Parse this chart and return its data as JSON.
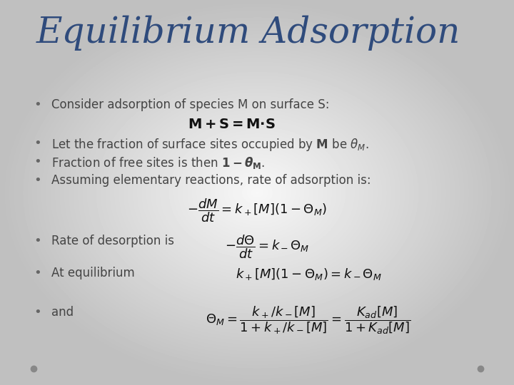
{
  "title": "Equilibrium Adsorption",
  "title_color": "#2F4B7C",
  "title_fontsize": 36,
  "bullet_color": "#666666",
  "text_color": "#444444",
  "bullet1": "Consider adsorption of species M on surface S:",
  "equation_center1": "$\\mathbf{M + S = M{\\bullet}S}$",
  "bullet2": "Let the fraction of surface sites occupied by $\\mathbf{M}$ be $\\boldsymbol{\\theta_M}$.",
  "bullet3": "Fraction of free sites is then $\\mathbf{1 - \\boldsymbol{\\theta}_M}$.",
  "bullet4": "Assuming elementary reactions, rate of adsorption is:",
  "eq_adsorption": "$-\\dfrac{dM}{dt} = k_+[M](1-\\Theta_M)$",
  "bullet5": "Rate of desorption is",
  "eq_desorption": "$-\\dfrac{d\\Theta}{dt} = k_-\\Theta_M$",
  "bullet6": "At equilibrium",
  "eq_equilibrium": "$k_+[M](1-\\Theta_M) = k_-\\Theta_M$",
  "bullet7": "and",
  "eq_final": "$\\Theta_M = \\dfrac{k_+/k_-[M]}{1+k_+/k_-[M]} = \\dfrac{K_{ad}[M]}{1+K_{ad}[M]}$",
  "dot_color": "#888888",
  "text_fontsize": 12,
  "eq_fontsize": 13,
  "bg_center": "#f8f8f8",
  "bg_edge": "#b8b8b8"
}
